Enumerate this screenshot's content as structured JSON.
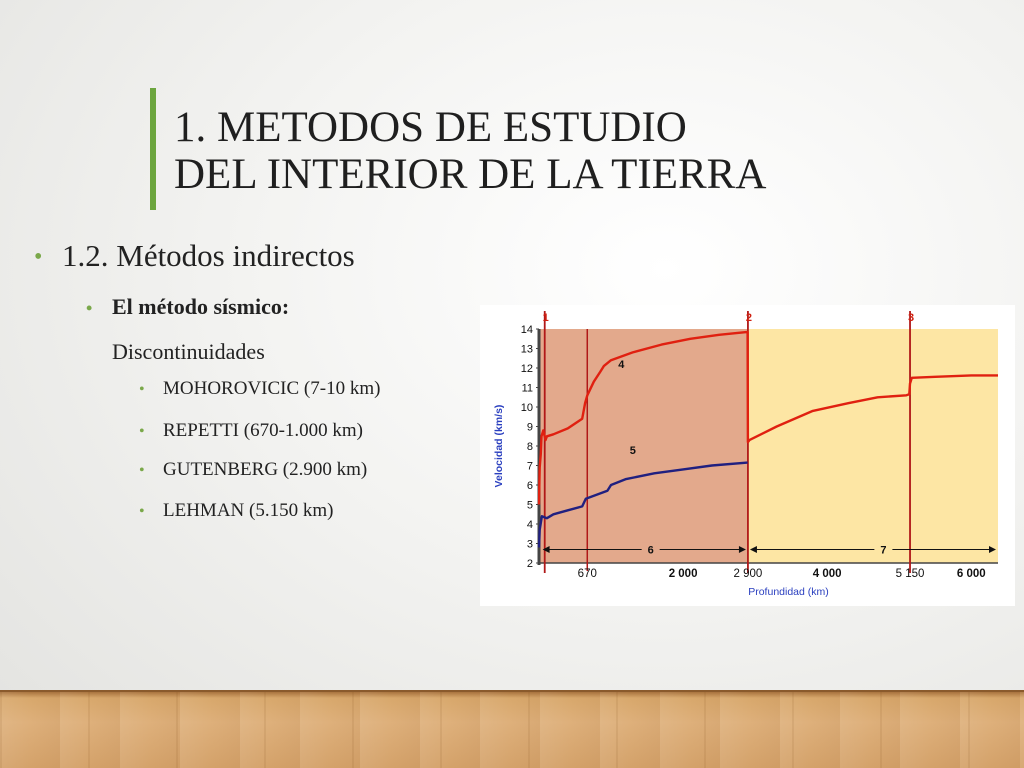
{
  "slide": {
    "title_line1": "1. METODOS DE ESTUDIO",
    "title_line2": "DEL INTERIOR DE LA TIERRA",
    "bullet_l1": "1.2. Métodos indirectos",
    "bullet_l2": "El método sísmico:",
    "bullet_l2_sub": "Discontinuidades",
    "items": [
      "MOHOROVICIC (7-10 km)",
      "REPETTI (670-1.000 km)",
      "GUTENBERG (2.900 km)",
      "LEHMAN (5.150 km)"
    ],
    "bullet_glyph": "•"
  },
  "chart_data": {
    "type": "line",
    "xlabel": "Profundidad (km)",
    "ylabel": "Velocidad (km/s)",
    "xlim": [
      0,
      6371
    ],
    "ylim": [
      2,
      14
    ],
    "y_ticks": [
      "2",
      "3",
      "4",
      "5",
      "6",
      "7",
      "8",
      "9",
      "10",
      "11",
      "12",
      "13",
      "14"
    ],
    "x_tick_labels": [
      {
        "value": 670,
        "label": "670"
      },
      {
        "value": 2000,
        "label": "2 000"
      },
      {
        "value": 2900,
        "label": "2 900"
      },
      {
        "value": 4000,
        "label": "4 000"
      },
      {
        "value": 5150,
        "label": "5 150"
      },
      {
        "value": 6000,
        "label": "6 000"
      }
    ],
    "discontinuities": [
      {
        "label": "1",
        "x": 10
      },
      {
        "label": "2",
        "x": 2900
      },
      {
        "label": "3",
        "x": 5150
      }
    ],
    "secondary_lines": [
      670
    ],
    "regions": [
      {
        "label": "6",
        "from": 0,
        "to": 2900,
        "color": "#e3a98c"
      },
      {
        "label": "7",
        "from": 2900,
        "to": 6371,
        "color": "#fde6a4"
      }
    ],
    "series": [
      {
        "name": "4",
        "color": "#e02010",
        "points": [
          [
            0,
            5.0
          ],
          [
            5,
            6.2
          ],
          [
            10,
            6.9
          ],
          [
            25,
            7.6
          ],
          [
            35,
            8.5
          ],
          [
            60,
            8.8
          ],
          [
            90,
            8.3
          ],
          [
            110,
            8.5
          ],
          [
            200,
            8.6
          ],
          [
            400,
            8.9
          ],
          [
            600,
            9.4
          ],
          [
            640,
            10.2
          ],
          [
            670,
            10.6
          ],
          [
            760,
            11.3
          ],
          [
            850,
            11.8
          ],
          [
            900,
            12.1
          ],
          [
            1000,
            12.4
          ],
          [
            1300,
            12.8
          ],
          [
            1700,
            13.2
          ],
          [
            2100,
            13.5
          ],
          [
            2500,
            13.7
          ],
          [
            2895,
            13.85
          ],
          [
            2900,
            8.2
          ],
          [
            2920,
            8.3
          ],
          [
            3300,
            9.0
          ],
          [
            3800,
            9.8
          ],
          [
            4300,
            10.2
          ],
          [
            4700,
            10.5
          ],
          [
            5100,
            10.6
          ],
          [
            5140,
            10.65
          ],
          [
            5150,
            11.2
          ],
          [
            5175,
            11.5
          ],
          [
            5500,
            11.55
          ],
          [
            6000,
            11.62
          ],
          [
            6371,
            11.62
          ]
        ]
      },
      {
        "name": "5",
        "color": "#202080",
        "points": [
          [
            0,
            2.8
          ],
          [
            5,
            3.3
          ],
          [
            10,
            3.7
          ],
          [
            40,
            4.4
          ],
          [
            110,
            4.3
          ],
          [
            200,
            4.5
          ],
          [
            400,
            4.7
          ],
          [
            600,
            4.9
          ],
          [
            650,
            5.3
          ],
          [
            800,
            5.5
          ],
          [
            950,
            5.7
          ],
          [
            1000,
            6.0
          ],
          [
            1200,
            6.3
          ],
          [
            1600,
            6.6
          ],
          [
            2000,
            6.8
          ],
          [
            2400,
            7.0
          ],
          [
            2895,
            7.15
          ]
        ]
      }
    ],
    "grid": false,
    "legend": "none"
  }
}
